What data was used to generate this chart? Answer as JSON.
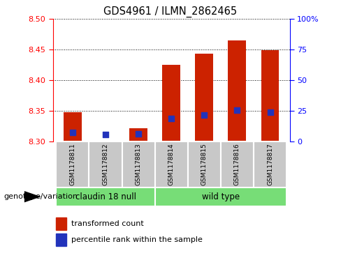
{
  "title": "GDS4961 / ILMN_2862465",
  "samples": [
    "GSM1178811",
    "GSM1178812",
    "GSM1178813",
    "GSM1178814",
    "GSM1178815",
    "GSM1178816",
    "GSM1178817"
  ],
  "bar_tops": [
    8.348,
    8.302,
    8.322,
    8.425,
    8.444,
    8.465,
    8.449
  ],
  "bar_base": 8.3,
  "blue_positions": [
    8.315,
    8.312,
    8.313,
    8.338,
    8.344,
    8.352,
    8.348
  ],
  "ylim": [
    8.3,
    8.5
  ],
  "y2lim": [
    0,
    100
  ],
  "yticks": [
    8.3,
    8.35,
    8.4,
    8.45,
    8.5
  ],
  "y2ticks": [
    0,
    25,
    50,
    75,
    100
  ],
  "y2ticklabels": [
    "0",
    "25",
    "50",
    "75",
    "100%"
  ],
  "bar_color": "#cc2200",
  "blue_color": "#2233bb",
  "group1_label": "claudin 18 null",
  "group2_label": "wild type",
  "group1_indices": [
    0,
    1,
    2
  ],
  "group2_indices": [
    3,
    4,
    5,
    6
  ],
  "group_bg_color": "#77dd77",
  "tick_bg_color": "#c8c8c8",
  "legend_red_label": "transformed count",
  "legend_blue_label": "percentile rank within the sample",
  "genotype_label": "genotype/variation",
  "bar_width": 0.55
}
